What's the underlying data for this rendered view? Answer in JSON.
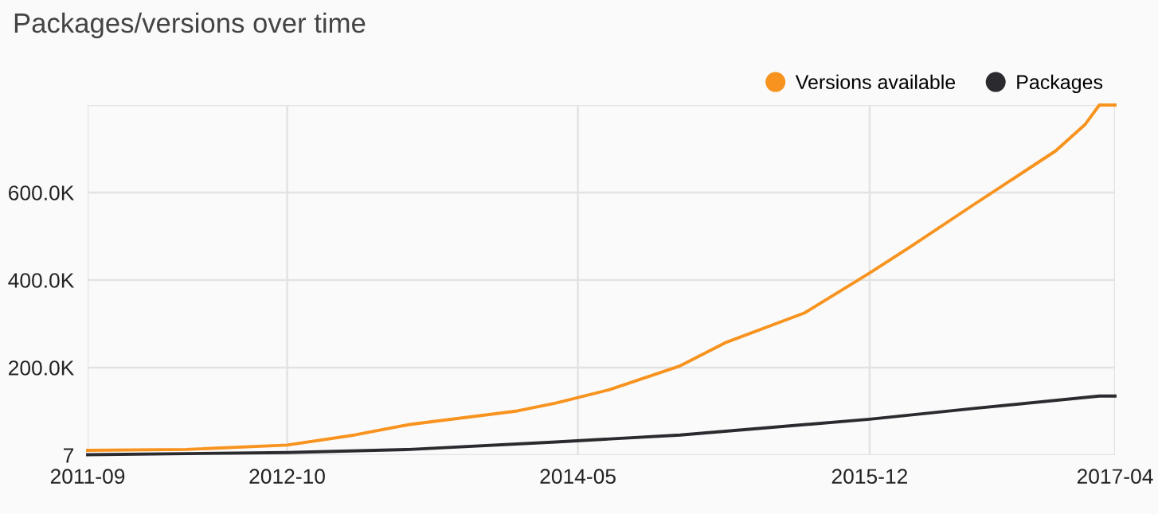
{
  "chart_data": {
    "type": "line",
    "title": "Packages/versions over time",
    "xlim": [
      "2011-09-01",
      "2017-04-01"
    ],
    "xticks": [
      {
        "value": "2011-09-01",
        "label": "2011-09"
      },
      {
        "value": "2012-10-01",
        "label": "2012-10"
      },
      {
        "value": "2014-05-01",
        "label": "2014-05"
      },
      {
        "value": "2015-12-01",
        "label": "2015-12"
      },
      {
        "value": "2017-04-01",
        "label": "2017-04"
      }
    ],
    "ylim": [
      7,
      800000
    ],
    "yticks": [
      7,
      {
        "value": 200000,
        "label": "200.0K"
      },
      {
        "value": 400000,
        "label": "400.0K"
      },
      {
        "value": 600000,
        "label": "600.0K"
      },
      {
        "value": 800000,
        "label": null
      }
    ],
    "grid": true,
    "legend": "top right",
    "marker": "none",
    "line_style": "solid",
    "series": [
      {
        "name": "Versions available",
        "color": "#f7931e",
        "x": [
          "2011-09-01",
          "2012-03-15",
          "2012-10-01",
          "2013-02-12",
          "2013-06-01",
          "2014-01-01",
          "2014-03-18",
          "2014-07-01",
          "2014-11-20",
          "2015-02-20",
          "2015-07-25",
          "2015-12-01",
          "2016-02-20",
          "2016-06-28",
          "2016-12-04",
          "2017-02-01",
          "2017-03-01",
          "2017-04-01"
        ],
        "values": [
          11000,
          13000,
          23000,
          46000,
          70000,
          101000,
          119000,
          149000,
          204000,
          258000,
          325000,
          416000,
          476000,
          575000,
          695000,
          756000,
          800000,
          800000
        ]
      },
      {
        "name": "Packages",
        "color": "#2b2b2f",
        "x": [
          "2011-09-01",
          "2012-10-01",
          "2013-06-01",
          "2014-03-18",
          "2014-11-20",
          "2015-12-01",
          "2016-06-28",
          "2017-03-01",
          "2017-04-01"
        ],
        "values": [
          1000,
          6000,
          13000,
          30000,
          46000,
          82000,
          107000,
          135000,
          135000
        ]
      }
    ]
  }
}
